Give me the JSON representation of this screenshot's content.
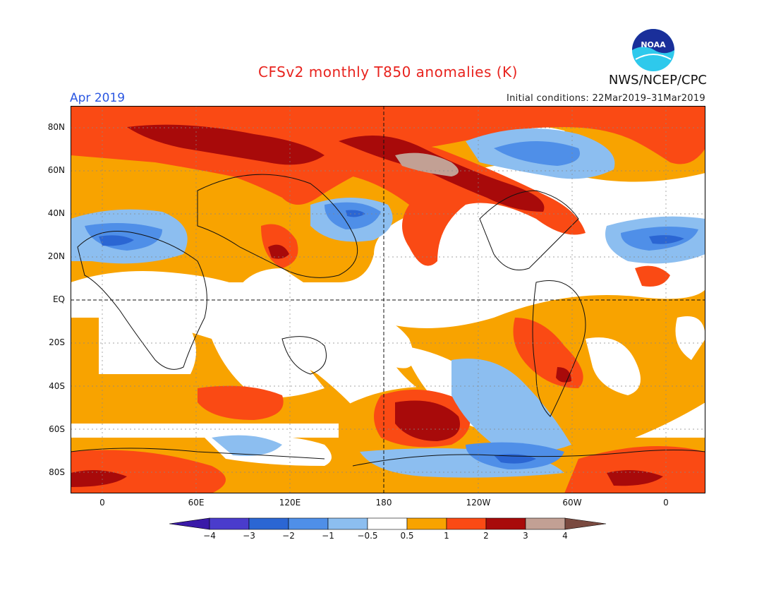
{
  "header": {
    "title": "CFSv2 monthly T850 anomalies (K)",
    "agency": "NWS/NCEP/CPC",
    "logo_text": "NOAA",
    "month": "Apr 2019",
    "initial_conditions": "Initial conditions: 22Mar2019–31Mar2019"
  },
  "map": {
    "lat_labels": [
      "80N",
      "60N",
      "40N",
      "20N",
      "EQ",
      "20S",
      "40S",
      "60S",
      "80S"
    ],
    "lon_labels": [
      "0",
      "60E",
      "120E",
      "180",
      "120W",
      "60W",
      "0"
    ]
  },
  "colorbar": {
    "labels": [
      "−4",
      "−3",
      "−2",
      "−1",
      "−0.5",
      "0.5",
      "1",
      "2",
      "3",
      "4"
    ],
    "colors": [
      "#3a1aa8",
      "#4a3ccc",
      "#2b66d3",
      "#4f8fe8",
      "#8cbef0",
      "#ffffff",
      "#f8a300",
      "#fa4a14",
      "#a80a0a",
      "#c2a094",
      "#7a4a40"
    ]
  }
}
